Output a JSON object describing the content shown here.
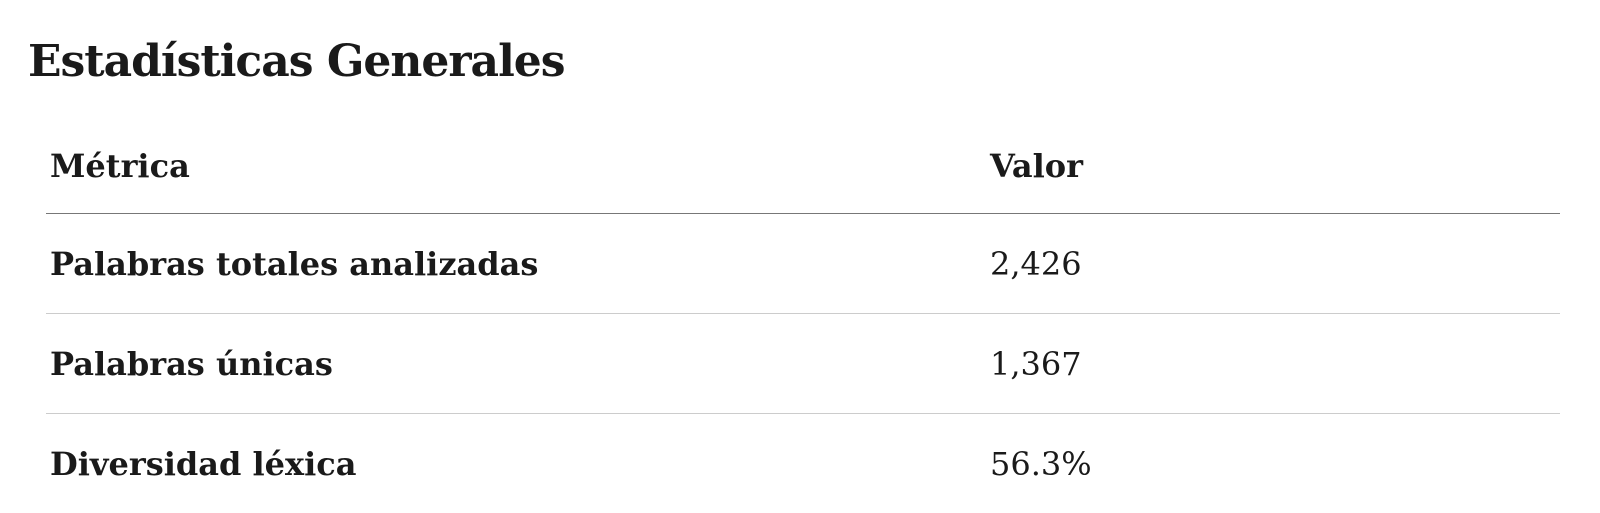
{
  "header": {
    "title": "Estadísticas Generales"
  },
  "table": {
    "columns": [
      "Métrica",
      "Valor"
    ],
    "rows": [
      [
        "Palabras totales analizadas",
        "2,426"
      ],
      [
        "Palabras únicas",
        "1,367"
      ],
      [
        "Diversidad léxica",
        "56.3%"
      ]
    ]
  }
}
